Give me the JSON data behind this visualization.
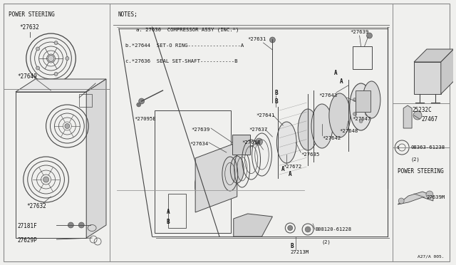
{
  "bg_color": "#f0f0ee",
  "line_color": "#444444",
  "text_color": "#111111",
  "border_color": "#888888",
  "fig_w": 6.4,
  "fig_h": 3.72,
  "dpi": 100,
  "notes": [
    "a. 27630  COMPRESSOR ASSY (INC.*)",
    "b.*27644  SET-O RING-----------------A",
    "c.*27636  SEAL SET-SHAFT-----------B"
  ],
  "page_code": "A27/A 005."
}
